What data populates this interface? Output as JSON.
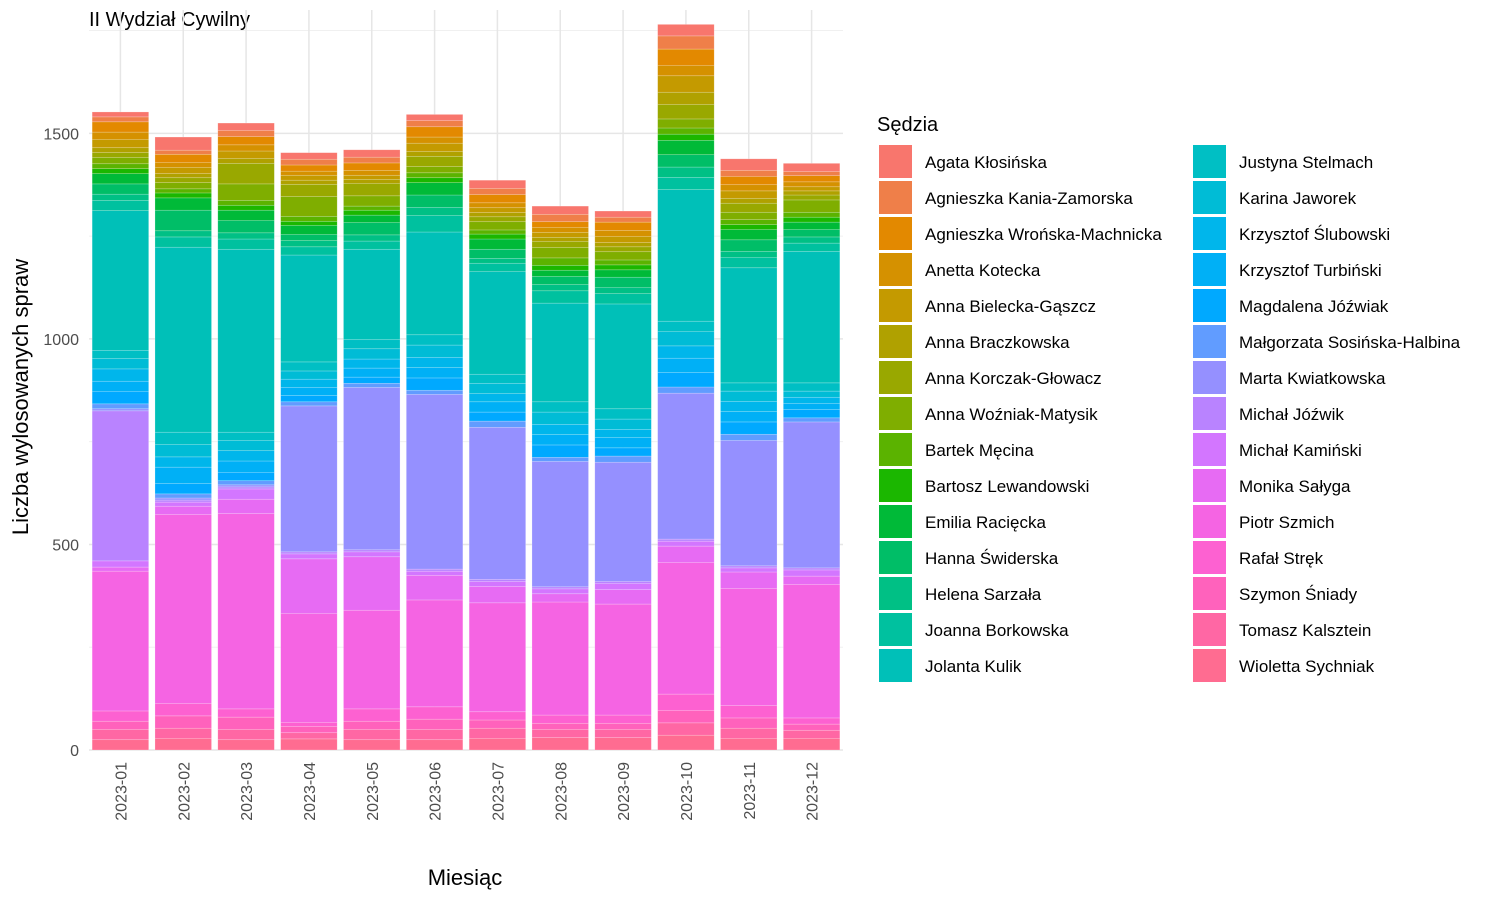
{
  "chart_data": {
    "type": "bar",
    "stacked": true,
    "title": "II Wydział Cywilny",
    "xlabel": "Miesiąc",
    "ylabel": "Liczba wylosowanych spraw",
    "ylim": [
      0,
      1800
    ],
    "y_ticks": [
      0,
      500,
      1000,
      1500
    ],
    "grid": true,
    "legend_title": "Sędzia",
    "legend_position": "right",
    "categories": [
      "2023-01",
      "2023-02",
      "2023-03",
      "2023-04",
      "2023-05",
      "2023-06",
      "2023-07",
      "2023-08",
      "2023-09",
      "2023-10",
      "2023-11",
      "2023-12"
    ],
    "series": [
      {
        "name": "Agata Kłosińska",
        "color": "#F8766D",
        "values": [
          12,
          32,
          18,
          16,
          18,
          15,
          20,
          20,
          15,
          28,
          28,
          20
        ]
      },
      {
        "name": "Agnieszka Kania-Zamorska",
        "color": "#EF7F49",
        "values": [
          12,
          10,
          15,
          14,
          14,
          15,
          15,
          18,
          12,
          32,
          15,
          10
        ]
      },
      {
        "name": "Agnieszka Wrońska-Machnicka",
        "color": "#E38900",
        "values": [
          25,
          20,
          20,
          15,
          18,
          25,
          20,
          14,
          20,
          40,
          20,
          15
        ]
      },
      {
        "name": "Anetta Kotecka",
        "color": "#D59100",
        "values": [
          18,
          12,
          15,
          10,
          12,
          15,
          12,
          12,
          15,
          25,
          15,
          12
        ]
      },
      {
        "name": "Anna Bielecka-Gąszcz",
        "color": "#C49A00",
        "values": [
          20,
          15,
          18,
          12,
          10,
          20,
          12,
          12,
          15,
          40,
          18,
          10
        ]
      },
      {
        "name": "Anna Braczkowska",
        "color": "#B0A100",
        "values": [
          12,
          10,
          12,
          10,
          10,
          12,
          10,
          10,
          10,
          30,
          12,
          10
        ]
      },
      {
        "name": "Anna Korczak-Głowacz",
        "color": "#99A800",
        "values": [
          12,
          12,
          50,
          30,
          30,
          25,
          12,
          15,
          12,
          35,
          22,
          12
        ]
      },
      {
        "name": "Anna Woźniak-Matysik",
        "color": "#7FAE00",
        "values": [
          15,
          15,
          40,
          48,
          25,
          15,
          20,
          25,
          20,
          22,
          18,
          30
        ]
      },
      {
        "name": "Bartek Męcina",
        "color": "#5BB300",
        "values": [
          12,
          10,
          12,
          12,
          10,
          12,
          10,
          18,
          12,
          15,
          12,
          12
        ]
      },
      {
        "name": "Bartosz Lewandowski",
        "color": "#1BB700",
        "values": [
          12,
          12,
          12,
          10,
          12,
          12,
          12,
          12,
          12,
          15,
          12,
          12
        ]
      },
      {
        "name": "Emilia Racięcka",
        "color": "#00BA38",
        "values": [
          25,
          30,
          25,
          22,
          18,
          30,
          25,
          15,
          18,
          35,
          25,
          18
        ]
      },
      {
        "name": "Hanna Świderska",
        "color": "#00BE67",
        "values": [
          25,
          50,
          30,
          15,
          30,
          30,
          22,
          20,
          25,
          30,
          28,
          18
        ]
      },
      {
        "name": "Helena Sarzała",
        "color": "#00C085",
        "values": [
          15,
          15,
          15,
          15,
          15,
          20,
          12,
          15,
          15,
          25,
          15,
          15
        ]
      },
      {
        "name": "Joanna Borkowska",
        "color": "#00C19F",
        "values": [
          25,
          25,
          25,
          20,
          20,
          40,
          20,
          30,
          25,
          30,
          25,
          20
        ]
      },
      {
        "name": "Jolanta Kulik",
        "color": "#00C0B8",
        "values": [
          340,
          450,
          445,
          260,
          220,
          250,
          250,
          240,
          255,
          320,
          280,
          320
        ]
      },
      {
        "name": "Justyna Stelmach",
        "color": "#00BFC4",
        "values": [
          20,
          30,
          20,
          22,
          22,
          25,
          22,
          25,
          25,
          25,
          20,
          20
        ]
      },
      {
        "name": "Karina Jaworek",
        "color": "#00BCD6",
        "values": [
          25,
          30,
          25,
          20,
          25,
          30,
          25,
          30,
          25,
          35,
          25,
          15
        ]
      },
      {
        "name": "Krzysztof Ślubowski",
        "color": "#00B6EB",
        "values": [
          30,
          25,
          25,
          20,
          22,
          25,
          20,
          25,
          20,
          30,
          25,
          15
        ]
      },
      {
        "name": "Krzysztof Turbiński",
        "color": "#00B0F6",
        "values": [
          25,
          40,
          28,
          20,
          22,
          25,
          25,
          25,
          25,
          35,
          25,
          15
        ]
      },
      {
        "name": "Magdalena Jóźwiak",
        "color": "#00A9FF",
        "values": [
          30,
          25,
          20,
          15,
          15,
          30,
          22,
          30,
          20,
          35,
          30,
          20
        ]
      },
      {
        "name": "Małgorzata Sosińska-Halbina",
        "color": "#619CFF",
        "values": [
          12,
          10,
          10,
          10,
          10,
          10,
          15,
          10,
          15,
          15,
          15,
          10
        ]
      },
      {
        "name": "Marta Kwiatkowska",
        "color": "#9590FF",
        "values": [
          5,
          5,
          5,
          355,
          395,
          425,
          370,
          305,
          290,
          355,
          305,
          355
        ]
      },
      {
        "name": "Michał Jóźwik",
        "color": "#B983FF",
        "values": [
          365,
          5,
          5,
          5,
          5,
          5,
          5,
          5,
          5,
          5,
          5,
          5
        ]
      },
      {
        "name": "Michał Kamiński",
        "color": "#D376FF",
        "values": [
          15,
          10,
          25,
          12,
          12,
          10,
          12,
          12,
          15,
          12,
          10,
          15
        ]
      },
      {
        "name": "Monika Sałyga",
        "color": "#E76BF3",
        "values": [
          10,
          20,
          35,
          133,
          130,
          60,
          40,
          20,
          35,
          40,
          40,
          20
        ]
      },
      {
        "name": "Piotr Szmich",
        "color": "#F564E3",
        "values": [
          340,
          460,
          475,
          265,
          240,
          260,
          265,
          275,
          270,
          320,
          285,
          325
        ]
      },
      {
        "name": "Rafał Stręk",
        "color": "#FD61D1",
        "values": [
          25,
          30,
          20,
          10,
          30,
          30,
          20,
          20,
          20,
          40,
          30,
          15
        ]
      },
      {
        "name": "Szymon Śniady",
        "color": "#FF62BC",
        "values": [
          20,
          30,
          30,
          15,
          20,
          25,
          20,
          15,
          15,
          30,
          25,
          15
        ]
      },
      {
        "name": "Tomasz Kalsztein",
        "color": "#FF67A4",
        "values": [
          25,
          25,
          25,
          15,
          25,
          25,
          25,
          20,
          20,
          30,
          25,
          20
        ]
      },
      {
        "name": "Wioletta Sychniak",
        "color": "#FF6C91",
        "values": [
          25,
          28,
          25,
          27,
          25,
          25,
          28,
          30,
          30,
          36,
          28,
          28
        ]
      }
    ]
  }
}
